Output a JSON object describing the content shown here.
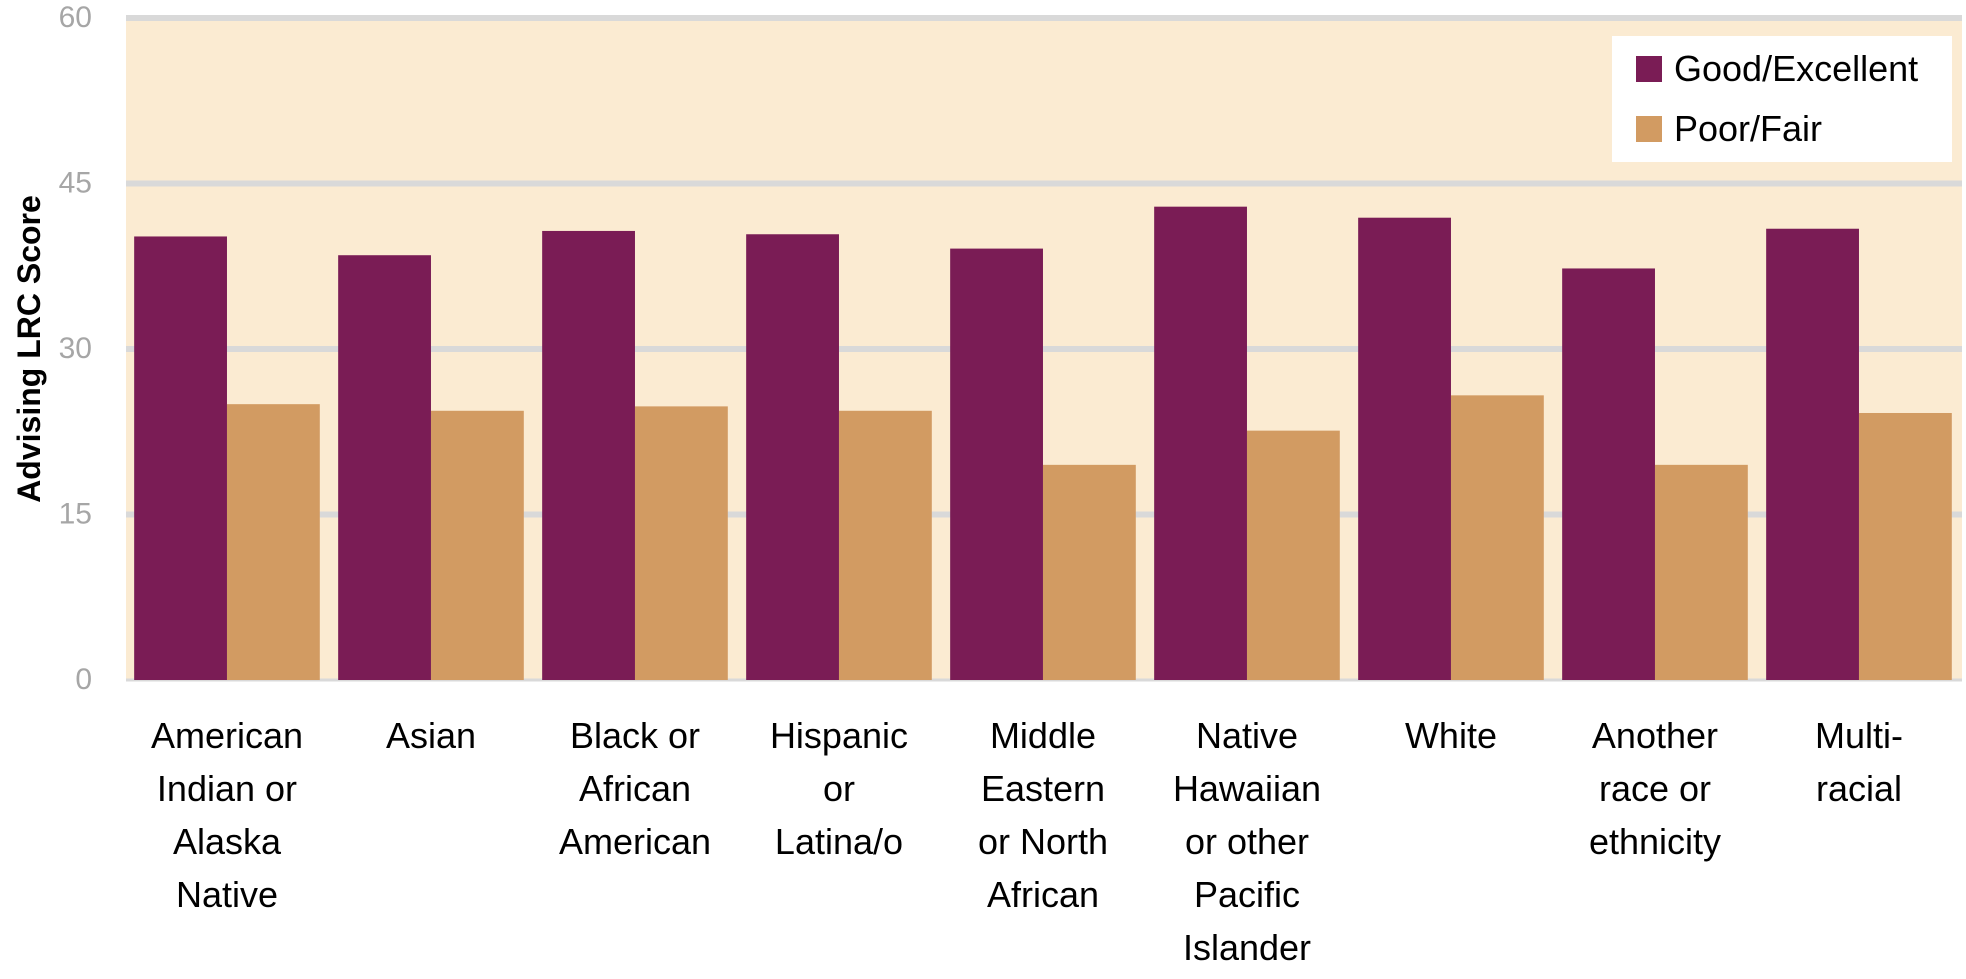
{
  "chart_data": {
    "type": "bar",
    "ylabel": "Advising LRC Score",
    "ylim": [
      0,
      60
    ],
    "yticks": [
      0,
      15,
      30,
      45,
      60
    ],
    "grid": true,
    "legend_position": "top-right",
    "categories": [
      "American Indian or Alaska Native",
      "Asian",
      "Black or African American",
      "Hispanic or Latina/o",
      "Middle Eastern or North African",
      "Native Hawaiian or other Pacific Islander",
      "White",
      "Another race or ethnicity",
      "Multi-racial"
    ],
    "category_lines": [
      [
        "American",
        "Indian or",
        "Alaska",
        "Native"
      ],
      [
        "Asian"
      ],
      [
        "Black or",
        "African",
        "American"
      ],
      [
        "Hispanic",
        "or",
        "Latina/o"
      ],
      [
        "Middle",
        "Eastern",
        "or North",
        "African"
      ],
      [
        "Native",
        "Hawaiian",
        "or other",
        "Pacific",
        "Islander"
      ],
      [
        "White"
      ],
      [
        "Another",
        "race or",
        "ethnicity"
      ],
      [
        "Multi-",
        "racial"
      ]
    ],
    "series": [
      {
        "name": "Good/Excellent",
        "color": "#7a1c55",
        "values": [
          40.2,
          38.5,
          40.7,
          40.4,
          39.1,
          42.9,
          41.9,
          37.3,
          40.9
        ]
      },
      {
        "name": "Poor/Fair",
        "color": "#d29b62",
        "values": [
          25.0,
          24.4,
          24.8,
          24.4,
          19.5,
          22.6,
          25.8,
          19.5,
          24.2
        ]
      }
    ],
    "colors": {
      "plot_background": "#fbebd2",
      "gridline": "#d9d9d9",
      "tick_label": "#a6a6a6",
      "label_text": "#000000"
    }
  }
}
